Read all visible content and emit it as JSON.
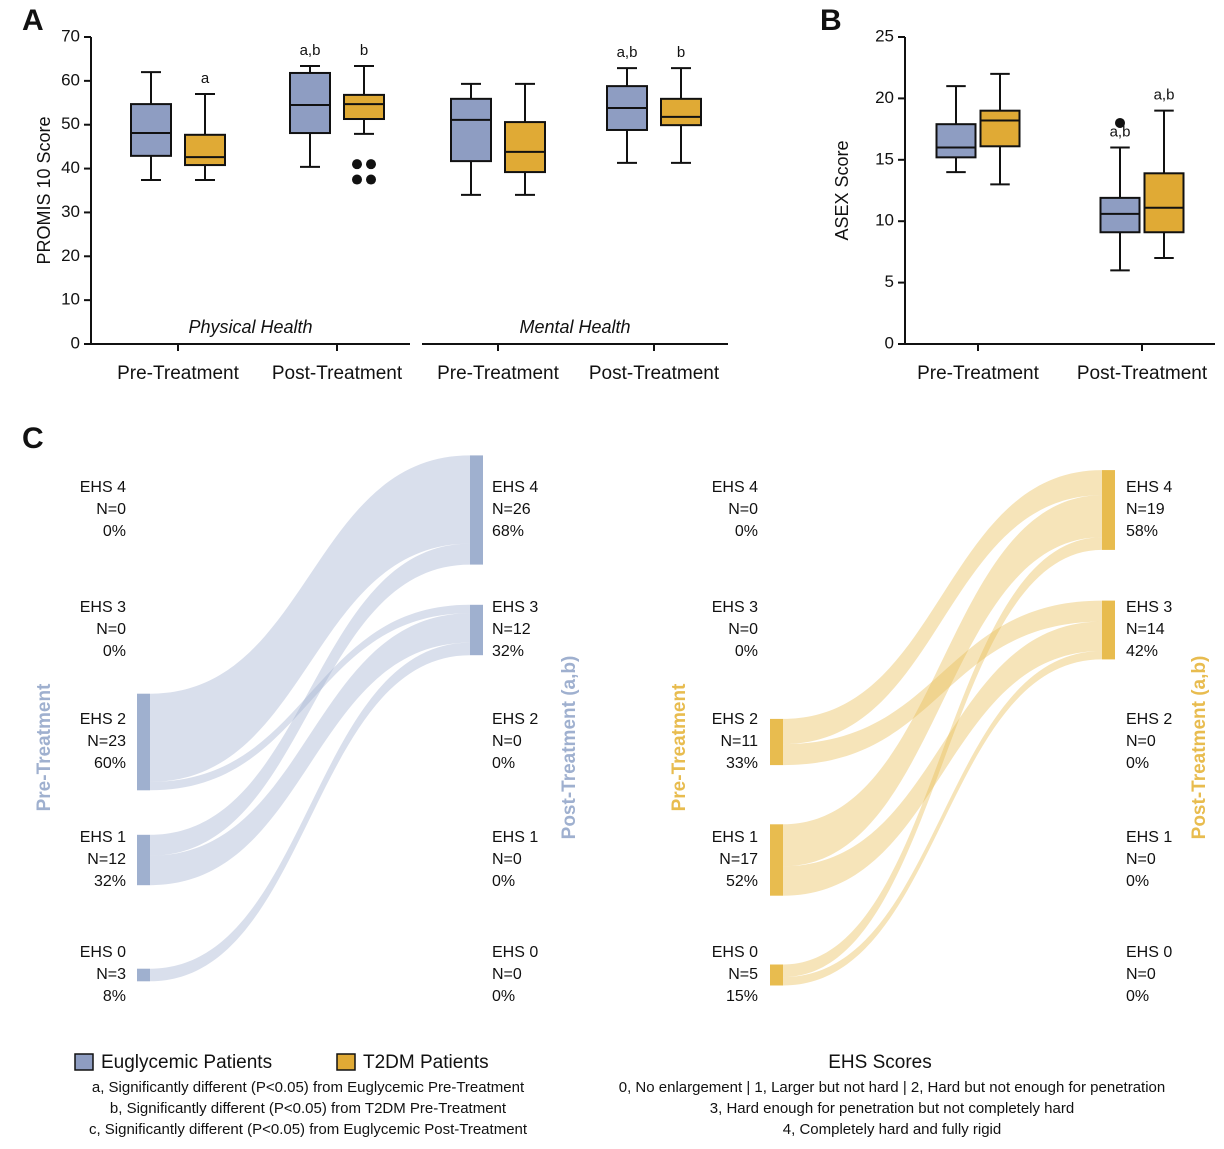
{
  "chart_data": [
    {
      "type": "box",
      "panel": "A",
      "ylabel": "PROMIS 10 Score",
      "ylim": [
        0,
        70
      ],
      "yticks": [
        0,
        10,
        20,
        30,
        40,
        50,
        60,
        70
      ],
      "groups": [
        {
          "label": "Physical Health",
          "categories": [
            "Pre-Treatment",
            "Post-Treatment"
          ]
        },
        {
          "label": "Mental Health",
          "categories": [
            "Pre-Treatment",
            "Post-Treatment"
          ]
        }
      ],
      "series": [
        {
          "name": "Euglycemic Patients",
          "color": "#8e9dc2",
          "min": [
            37.4,
            40.4,
            34,
            41.3
          ],
          "q1": [
            42.9,
            48.1,
            41.7,
            48.8
          ],
          "median": [
            48.1,
            54.5,
            51.1,
            53.8
          ],
          "q3": [
            54.7,
            61.8,
            55.9,
            58.8
          ],
          "max": [
            62,
            63.4,
            59.3,
            62.9
          ],
          "outliers": [
            [],
            [],
            [],
            []
          ],
          "annotations": [
            null,
            "a,b",
            null,
            "a,b"
          ]
        },
        {
          "name": "T2DM Patients",
          "color": "#e0aa35",
          "min": [
            37.4,
            47.9,
            34,
            41.3
          ],
          "q1": [
            40.8,
            51.3,
            39.2,
            49.9
          ],
          "median": [
            42.6,
            54.7,
            43.8,
            51.8
          ],
          "q3": [
            47.7,
            56.8,
            50.6,
            55.9
          ],
          "max": [
            57,
            63.4,
            59.3,
            62.9
          ],
          "outliers": [
            [],
            [
              41,
              41,
              37.5,
              37.5
            ],
            [],
            []
          ],
          "annotations": [
            "a",
            "b",
            null,
            "b"
          ]
        }
      ]
    },
    {
      "type": "box",
      "panel": "B",
      "ylabel": "ASEX Score",
      "ylim": [
        0,
        25
      ],
      "yticks": [
        0,
        5,
        10,
        15,
        20,
        25
      ],
      "categories": [
        "Pre-Treatment",
        "Post-Treatment"
      ],
      "series": [
        {
          "color": "#8e9dc2",
          "min": [
            14,
            6
          ],
          "q1": [
            15.2,
            9.1
          ],
          "median": [
            16,
            10.6
          ],
          "q3": [
            17.9,
            11.9
          ],
          "max": [
            21,
            16
          ],
          "outliers": [
            [],
            [
              18
            ]
          ],
          "annotations": [
            null,
            "a,b"
          ]
        },
        {
          "color": "#e0aa35",
          "min": [
            13,
            7
          ],
          "q1": [
            16.1,
            9.1
          ],
          "median": [
            18.2,
            11.1
          ],
          "q3": [
            19,
            13.9
          ],
          "max": [
            22,
            19
          ],
          "outliers": [
            [],
            []
          ],
          "annotations": [
            null,
            "a,b"
          ]
        }
      ]
    },
    {
      "type": "sankey",
      "panel": "C",
      "left_label": "Pre-Treatment",
      "right_label": "Post-Treatment (a,b)",
      "color": "#9fb0cf",
      "left_nodes": [
        {
          "name": "EHS 4",
          "value": 0,
          "value_label": "N=0",
          "share_label": "0%"
        },
        {
          "name": "EHS 3",
          "value": 0,
          "value_label": "N=0",
          "share_label": "0%"
        },
        {
          "name": "EHS 2",
          "value": 23,
          "value_label": "N=23",
          "share_label": "60%"
        },
        {
          "name": "EHS 1",
          "value": 12,
          "value_label": "N=12",
          "share_label": "32%"
        },
        {
          "name": "EHS 0",
          "value": 3,
          "value_label": "N=3",
          "share_label": "8%"
        }
      ],
      "right_nodes": [
        {
          "name": "EHS 4",
          "value": 26,
          "value_label": "N=26",
          "share_label": "68%"
        },
        {
          "name": "EHS 3",
          "value": 12,
          "value_label": "N=12",
          "share_label": "32%"
        },
        {
          "name": "EHS 2",
          "value": 0,
          "value_label": "N=0",
          "share_label": "0%"
        },
        {
          "name": "EHS 1",
          "value": 0,
          "value_label": "N=0",
          "share_label": "0%"
        },
        {
          "name": "EHS 0",
          "value": 0,
          "value_label": "N=0",
          "share_label": "0%"
        }
      ],
      "links": [
        {
          "source": "EHS 2",
          "target": "EHS 4",
          "value": 21
        },
        {
          "source": "EHS 2",
          "target": "EHS 3",
          "value": 2
        },
        {
          "source": "EHS 1",
          "target": "EHS 4",
          "value": 5
        },
        {
          "source": "EHS 1",
          "target": "EHS 3",
          "value": 7
        },
        {
          "source": "EHS 0",
          "target": "EHS 3",
          "value": 3
        }
      ]
    },
    {
      "type": "sankey",
      "left_label": "Pre-Treatment",
      "right_label": "Post-Treatment (a,b)",
      "color": "#e8bc4f",
      "left_nodes": [
        {
          "name": "EHS 4",
          "value": 0,
          "value_label": "N=0",
          "share_label": "0%"
        },
        {
          "name": "EHS 3",
          "value": 0,
          "value_label": "N=0",
          "share_label": "0%"
        },
        {
          "name": "EHS 2",
          "value": 11,
          "value_label": "N=11",
          "share_label": "33%"
        },
        {
          "name": "EHS 1",
          "value": 17,
          "value_label": "N=17",
          "share_label": "52%"
        },
        {
          "name": "EHS 0",
          "value": 5,
          "value_label": "N=5",
          "share_label": "15%"
        }
      ],
      "right_nodes": [
        {
          "name": "EHS 4",
          "value": 19,
          "value_label": "N=19",
          "share_label": "58%"
        },
        {
          "name": "EHS 3",
          "value": 14,
          "value_label": "N=14",
          "share_label": "42%"
        },
        {
          "name": "EHS 2",
          "value": 0,
          "value_label": "N=0",
          "share_label": "0%"
        },
        {
          "name": "EHS 1",
          "value": 0,
          "value_label": "N=0",
          "share_label": "0%"
        },
        {
          "name": "EHS 0",
          "value": 0,
          "value_label": "N=0",
          "share_label": "0%"
        }
      ],
      "links": [
        {
          "source": "EHS 2",
          "target": "EHS 4",
          "value": 6
        },
        {
          "source": "EHS 2",
          "target": "EHS 3",
          "value": 5
        },
        {
          "source": "EHS 1",
          "target": "EHS 4",
          "value": 10
        },
        {
          "source": "EHS 1",
          "target": "EHS 3",
          "value": 7
        },
        {
          "source": "EHS 0",
          "target": "EHS 4",
          "value": 3
        },
        {
          "source": "EHS 0",
          "target": "EHS 3",
          "value": 2
        }
      ]
    }
  ],
  "notes": {
    "significance": [
      "a, Significantly different (P<0.05) from Euglycemic Pre-Treatment",
      "b, Significantly different (P<0.05) from T2DM Pre-Treatment",
      "c, Significantly different (P<0.05) from Euglycemic Post-Treatment"
    ],
    "ehs_title": "EHS Scores",
    "ehs_lines": [
      "0, No enlargement  | 1, Larger but not hard  |  2, Hard but not enough for penetration",
      "3, Hard enough for penetration but not completely hard",
      "4, Completely hard and fully rigid"
    ]
  }
}
